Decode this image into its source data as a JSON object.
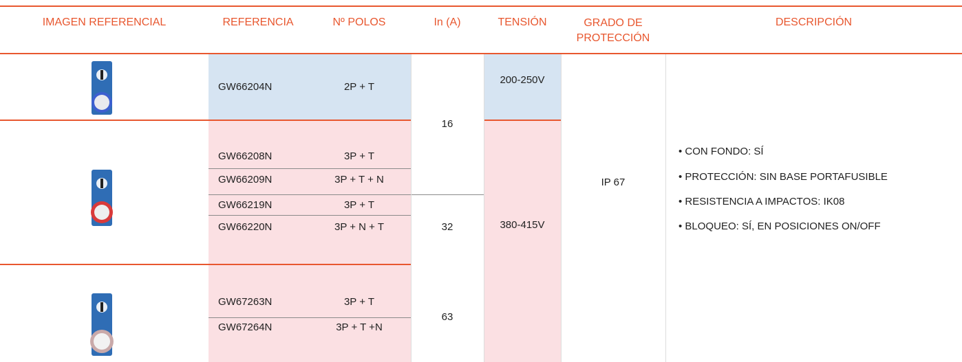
{
  "table": {
    "headers": [
      "IMAGEN REFERENCIAL",
      "REFERENCIA",
      "Nº POLOS",
      "In (A)",
      "TENSIÓN",
      "GRADO DE PROTECCIÓN",
      "DESCRIPCIÓN"
    ],
    "rows": [
      [
        "GW66204N",
        "2P + T"
      ],
      [
        "GW66208N",
        "3P + T"
      ],
      [
        "GW66209N",
        "3P + T + N"
      ],
      [
        "GW66219N",
        "3P + T"
      ],
      [
        "GW66220N",
        "3P + N + T"
      ],
      [
        "GW67263N",
        "3P + T"
      ],
      [
        "GW67264N",
        "3P + T +N"
      ]
    ],
    "current": [
      16,
      32,
      63
    ],
    "voltage": [
      "200-250V",
      "380-415V"
    ],
    "protection": "IP 67",
    "description": [
      "• CON FONDO: SÍ",
      "• PROTECCIÓN: SIN BASE PORTAFUSIBLE",
      "• RESISTENCIA A IMPACTOS: IK08",
      "• BLOQUEO: SÍ, EN POSICIONES ON/OFF"
    ]
  }
}
